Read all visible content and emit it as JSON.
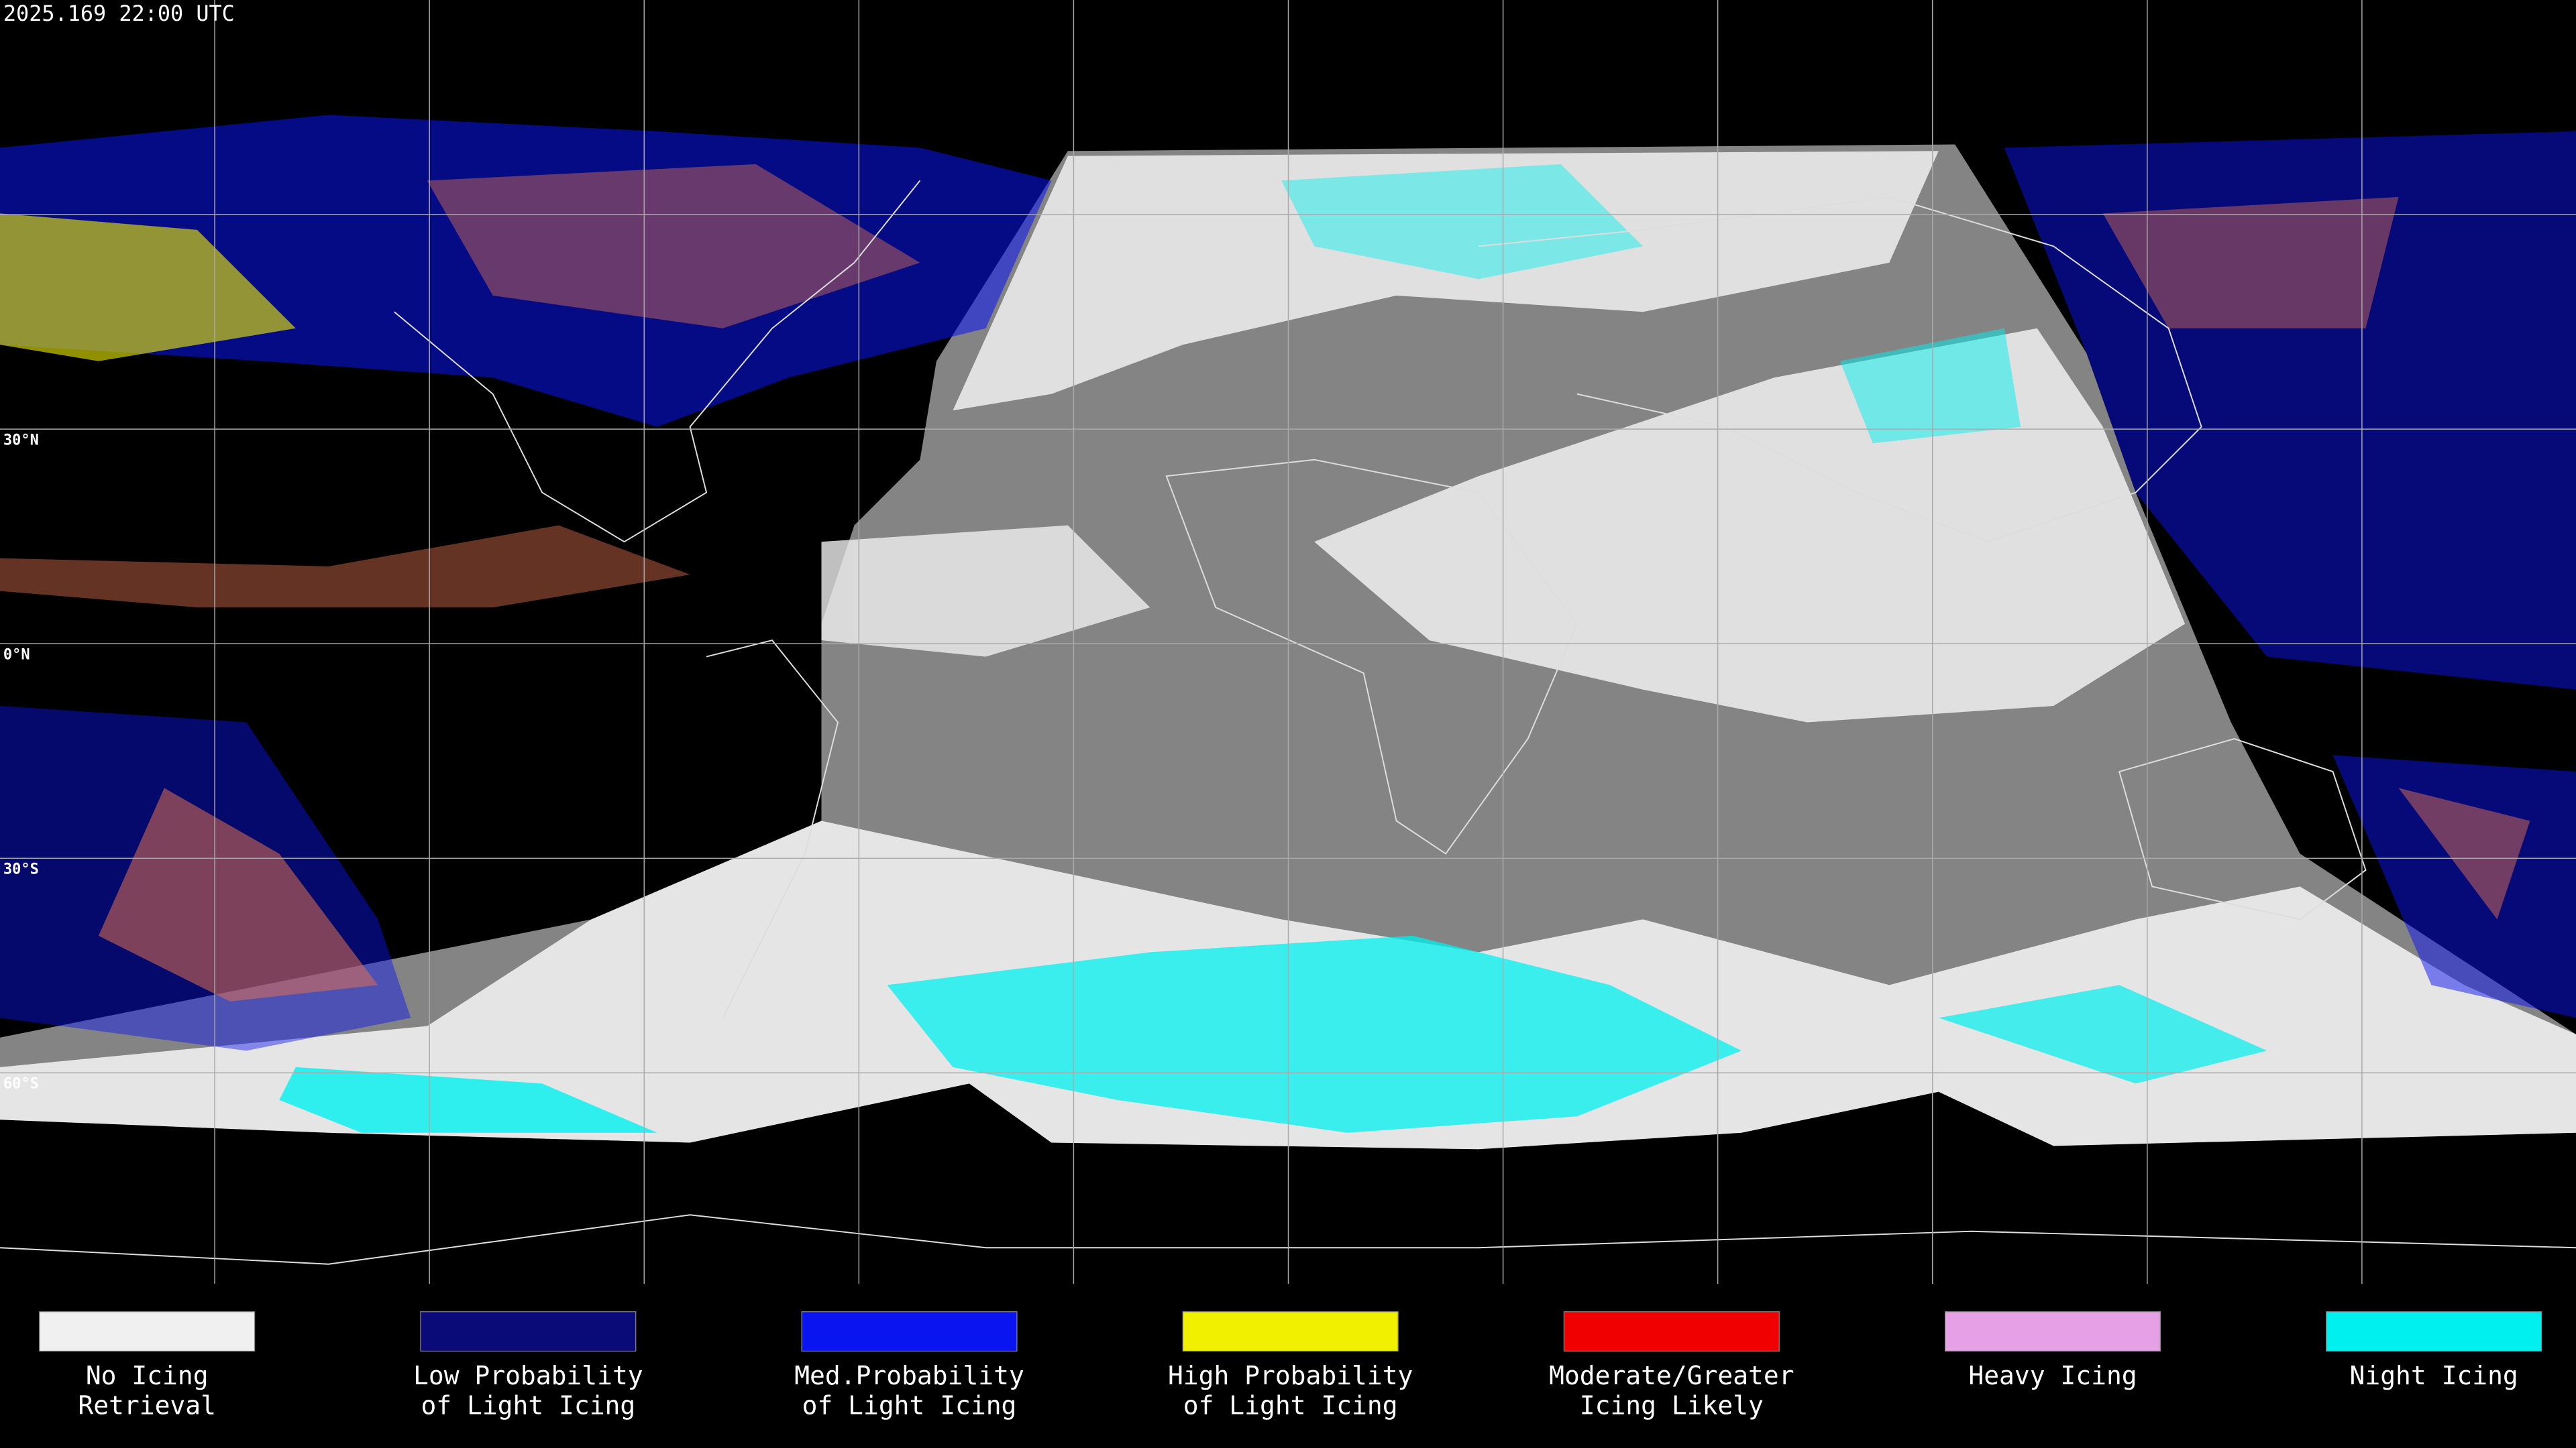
{
  "header": {
    "timestamp": "2025.169 22:00 UTC"
  },
  "latitude_labels": [
    "30°N",
    "0°N",
    "30°S",
    "60°S"
  ],
  "legend": {
    "items": [
      {
        "lines": [
          "No Icing",
          "Retrieval"
        ],
        "color": "#f0f0f0"
      },
      {
        "lines": [
          "Low Probability",
          "of Light Icing"
        ],
        "color": "#0a0a78"
      },
      {
        "lines": [
          "Med.Probability",
          "of Light Icing"
        ],
        "color": "#0a14f0"
      },
      {
        "lines": [
          "High Probability",
          "of Light Icing"
        ],
        "color": "#f0f000"
      },
      {
        "lines": [
          "Moderate/Greater",
          "Icing Likely"
        ],
        "color": "#f00000"
      },
      {
        "lines": [
          "Heavy Icing",
          ""
        ],
        "color": "#e6a0e6"
      },
      {
        "lines": [
          "Night Icing",
          ""
        ],
        "color": "#00f0f0"
      }
    ]
  }
}
